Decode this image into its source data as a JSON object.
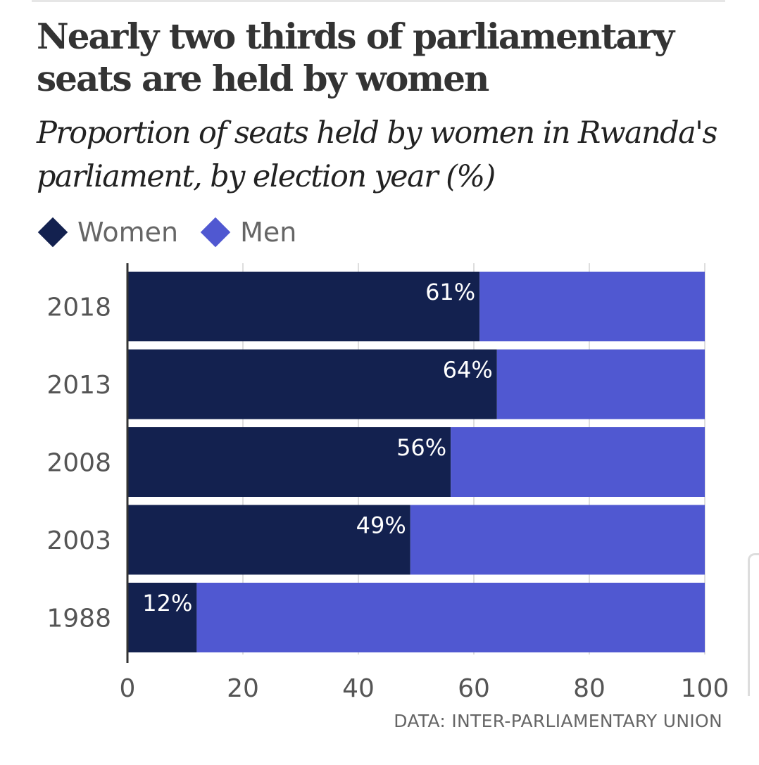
{
  "chart_data": {
    "type": "bar",
    "orientation": "horizontal",
    "stacked": true,
    "title": "Nearly two thirds of parliamentary seats are held by women",
    "subtitle": "Proportion of seats held by women in Rwanda's parliament, by election year (%)",
    "categories": [
      "2018",
      "2013",
      "2008",
      "2003",
      "1988"
    ],
    "series": [
      {
        "name": "Women",
        "color": "#13214f",
        "values": [
          61,
          64,
          56,
          49,
          12
        ]
      },
      {
        "name": "Men",
        "color": "#5058d1",
        "values": [
          39,
          36,
          44,
          51,
          88
        ]
      }
    ],
    "data_labels": [
      "61%",
      "64%",
      "56%",
      "49%",
      "12%"
    ],
    "xlim": [
      0,
      100
    ],
    "xticks": [
      "0",
      "20",
      "40",
      "60",
      "80",
      "100"
    ],
    "grid": true,
    "legend": "top-left",
    "source": "DATA: INTER-PARLIAMENTARY UNION"
  }
}
